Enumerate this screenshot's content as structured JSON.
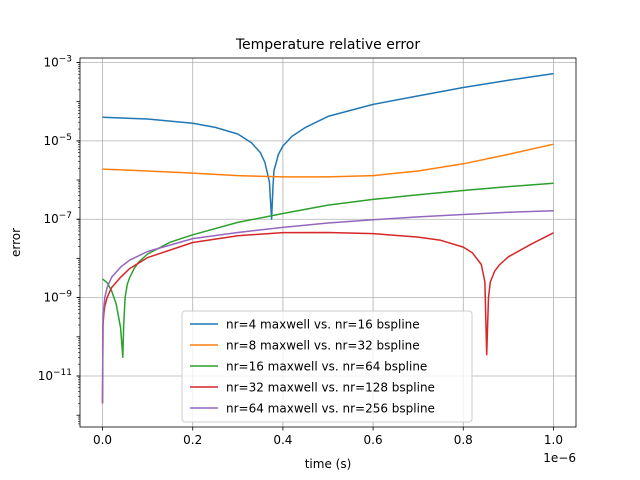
{
  "chart_data": {
    "type": "line",
    "title": "Temperature relative error",
    "xlabel": "time (s)",
    "ylabel": "error",
    "x_offset_label": "1e−6",
    "xlim": [
      -5e-08,
      1.05e-06
    ],
    "ylim": [
      5e-13,
      0.0013
    ],
    "yscale": "log",
    "grid": true,
    "legend_position": "lower center",
    "x_ticks": [
      {
        "value": 0,
        "label": "0.0"
      },
      {
        "value": 2e-07,
        "label": "0.2"
      },
      {
        "value": 4e-07,
        "label": "0.4"
      },
      {
        "value": 6e-07,
        "label": "0.6"
      },
      {
        "value": 8e-07,
        "label": "0.8"
      },
      {
        "value": 1e-06,
        "label": "1.0"
      }
    ],
    "y_ticks": [
      {
        "value": 1e-11,
        "base": "10",
        "exp": "−11"
      },
      {
        "value": 1e-09,
        "base": "10",
        "exp": "−9"
      },
      {
        "value": 1e-07,
        "base": "10",
        "exp": "−7"
      },
      {
        "value": 1e-05,
        "base": "10",
        "exp": "−5"
      },
      {
        "value": 0.001,
        "base": "10",
        "exp": "−3"
      }
    ],
    "series": [
      {
        "name": "nr=4 maxwell vs. nr=16 bspline",
        "color": "#1f77b4",
        "x": [
          0,
          1e-07,
          2e-07,
          2.5e-07,
          3e-07,
          3.3e-07,
          3.5e-07,
          3.6e-07,
          3.7e-07,
          3.75e-07,
          3.78e-07,
          3.8e-07,
          3.9e-07,
          4e-07,
          4.2e-07,
          4.5e-07,
          5e-07,
          6e-07,
          7e-07,
          8e-07,
          9e-07,
          1e-06
        ],
        "y": [
          4e-05,
          3.6e-05,
          2.8e-05,
          2.2e-05,
          1.5e-05,
          9e-06,
          5e-06,
          2.8e-06,
          9e-07,
          1e-07,
          7e-07,
          1.7e-06,
          4.5e-06,
          7.4e-06,
          1.3e-05,
          2.2e-05,
          4.2e-05,
          8.5e-05,
          0.00014,
          0.00023,
          0.00035,
          0.00052
        ]
      },
      {
        "name": "nr=8 maxwell vs. nr=32 bspline",
        "color": "#ff7f0e",
        "x": [
          0,
          1e-07,
          2e-07,
          3e-07,
          4e-07,
          5e-07,
          6e-07,
          7e-07,
          8e-07,
          9e-07,
          1e-06
        ],
        "y": [
          1.9e-06,
          1.7e-06,
          1.5e-06,
          1.3e-06,
          1.2e-06,
          1.2e-06,
          1.3e-06,
          1.7e-06,
          2.6e-06,
          4.5e-06,
          8.2e-06
        ]
      },
      {
        "name": "nr=16 maxwell vs. nr=64 bspline",
        "color": "#2ca02c",
        "x": [
          0,
          1e-08,
          2e-08,
          3e-08,
          4e-08,
          4.5e-08,
          4.7e-08,
          5e-08,
          5.5e-08,
          6e-08,
          7e-08,
          8e-08,
          1e-07,
          1.5e-07,
          2e-07,
          3e-07,
          4e-07,
          5e-07,
          6e-07,
          7e-07,
          8e-07,
          9e-07,
          1e-06
        ],
        "y": [
          3e-09,
          2.4e-09,
          1.5e-09,
          7e-10,
          1.7e-10,
          3e-11,
          2e-10,
          1e-09,
          2.2e-09,
          3.2e-09,
          5.5e-09,
          8e-09,
          1.3e-08,
          2.6e-08,
          4e-08,
          8.3e-08,
          1.4e-07,
          2.3e-07,
          3.2e-07,
          4.2e-07,
          5.4e-07,
          6.8e-07,
          8.3e-07
        ]
      },
      {
        "name": "nr=32 maxwell vs. nr=128 bspline",
        "color": "#d62728",
        "x": [
          0,
          1e-09,
          3e-09,
          5e-09,
          1e-08,
          2e-08,
          4e-08,
          6e-08,
          1e-07,
          2e-07,
          3e-07,
          4e-07,
          5e-07,
          6e-07,
          7e-07,
          7.5e-07,
          8e-07,
          8.2e-07,
          8.4e-07,
          8.48e-07,
          8.52e-07,
          8.56e-07,
          8.6e-07,
          8.7e-07,
          8.8e-07,
          9e-07,
          9.5e-07,
          1e-06
        ],
        "y": [
          2e-12,
          2e-10,
          4e-10,
          6e-10,
          1e-09,
          1.8e-09,
          3.3e-09,
          5.5e-09,
          1.05e-08,
          2.55e-08,
          3.8e-08,
          4.55e-08,
          4.6e-08,
          4.3e-08,
          3.5e-08,
          2.9e-08,
          1.95e-08,
          1.4e-08,
          7e-09,
          2.5e-09,
          3.5e-11,
          1e-09,
          2.5e-09,
          4.8e-09,
          6.8e-09,
          1.1e-08,
          2.3e-08,
          4.5e-08
        ]
      },
      {
        "name": "nr=64 maxwell vs. nr=256 bspline",
        "color": "#9467bd",
        "x": [
          0,
          1e-09,
          3e-09,
          5e-09,
          1e-08,
          2e-08,
          4e-08,
          6e-08,
          1e-07,
          2e-07,
          3e-07,
          4e-07,
          5e-07,
          6e-07,
          7e-07,
          8e-07,
          9e-07,
          1e-06
        ],
        "y": [
          2e-12,
          3e-10,
          6e-10,
          1e-09,
          1.8e-09,
          3.3e-09,
          6e-09,
          9e-09,
          1.5e-08,
          3.2e-08,
          4.6e-08,
          6.2e-08,
          8e-08,
          9.7e-08,
          1.15e-07,
          1.32e-07,
          1.5e-07,
          1.65e-07
        ]
      }
    ]
  }
}
